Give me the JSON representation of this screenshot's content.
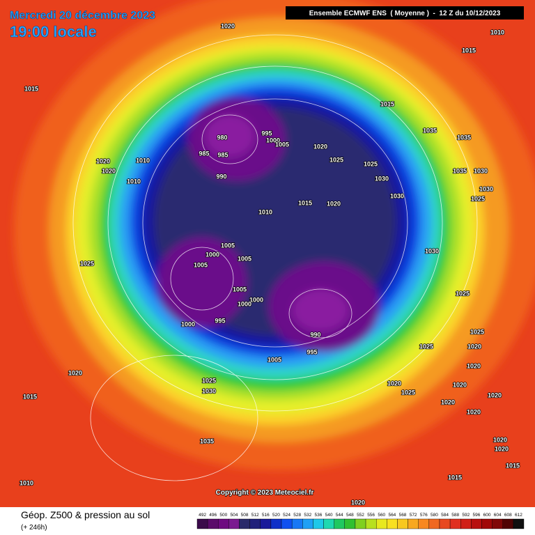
{
  "header": {
    "date": "Mercredi 20 décembre 2023",
    "time": "19:00 locale",
    "model": "Ensemble ECMWF ENS  ( Moyenne )  -  12 Z du 10/12/2023"
  },
  "copyright": "Copyright © 2023 Meteociel.fr",
  "footer": {
    "title": "Géop. Z500 & pression au sol",
    "lead": "(+ 246h)"
  },
  "isobars": [
    1020,
    1010,
    1015,
    1015,
    1015,
    1035,
    1035,
    980,
    995,
    1000,
    1005,
    985,
    985,
    1020,
    1025,
    1025,
    1020,
    1020,
    1010,
    990,
    1010,
    1030,
    1030,
    1035,
    1030,
    1030,
    1025,
    1015,
    1020,
    1010,
    1025,
    1005,
    1000,
    1005,
    1005,
    1005,
    1000,
    1000,
    1000,
    995,
    990,
    995,
    1005,
    1025,
    1025,
    1020,
    1015,
    1025,
    1030,
    1020,
    1025,
    1020,
    1020,
    1020,
    1020,
    1020,
    1035,
    1010,
    1020,
    1020,
    1015,
    1015,
    1020,
    1030,
    1025,
    1020
  ],
  "legend": {
    "levels": [
      492,
      496,
      500,
      504,
      508,
      512,
      516,
      520,
      524,
      528,
      532,
      536,
      540,
      544,
      548,
      552,
      556,
      560,
      564,
      568,
      572,
      576,
      580,
      584,
      588,
      592,
      596,
      600,
      604,
      608,
      612
    ],
    "colors": [
      "#3a0a4a",
      "#5a0a6a",
      "#6e0a80",
      "#7a1a90",
      "#2a2a6a",
      "#20207a",
      "#1a1a9a",
      "#1030c8",
      "#1050f0",
      "#1878f5",
      "#20a0f5",
      "#20c8e8",
      "#20d8b0",
      "#20c860",
      "#30c030",
      "#80d020",
      "#b8e020",
      "#e8e820",
      "#f8e020",
      "#f8c820",
      "#f8a820",
      "#f88820",
      "#f06820",
      "#e84820",
      "#e03020",
      "#d02018",
      "#b81010",
      "#a00808",
      "#800808",
      "#500404",
      "#101010"
    ]
  }
}
